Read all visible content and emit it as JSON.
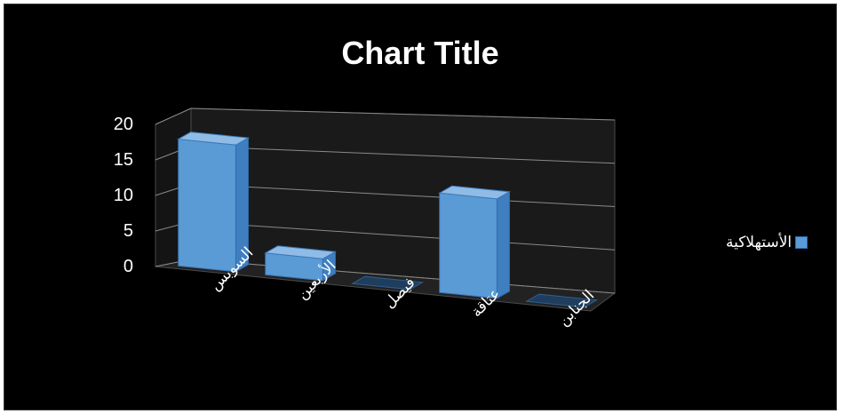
{
  "chart_data": {
    "type": "bar",
    "title": "Chart Title",
    "categories": [
      "السوبس",
      "الأربعين",
      "فيصل",
      "عتاقة",
      "الجنابن"
    ],
    "series": [
      {
        "name": "الأستهلاكية",
        "values": [
          18,
          3,
          0,
          13,
          0
        ]
      }
    ],
    "ylim": [
      0,
      20
    ],
    "yticks": [
      "0",
      "5",
      "10",
      "15",
      "20"
    ],
    "grid": true,
    "legend": "right",
    "colors": {
      "bar": "#5b9bd5",
      "background": "#000000",
      "text": "#ffffff"
    }
  }
}
